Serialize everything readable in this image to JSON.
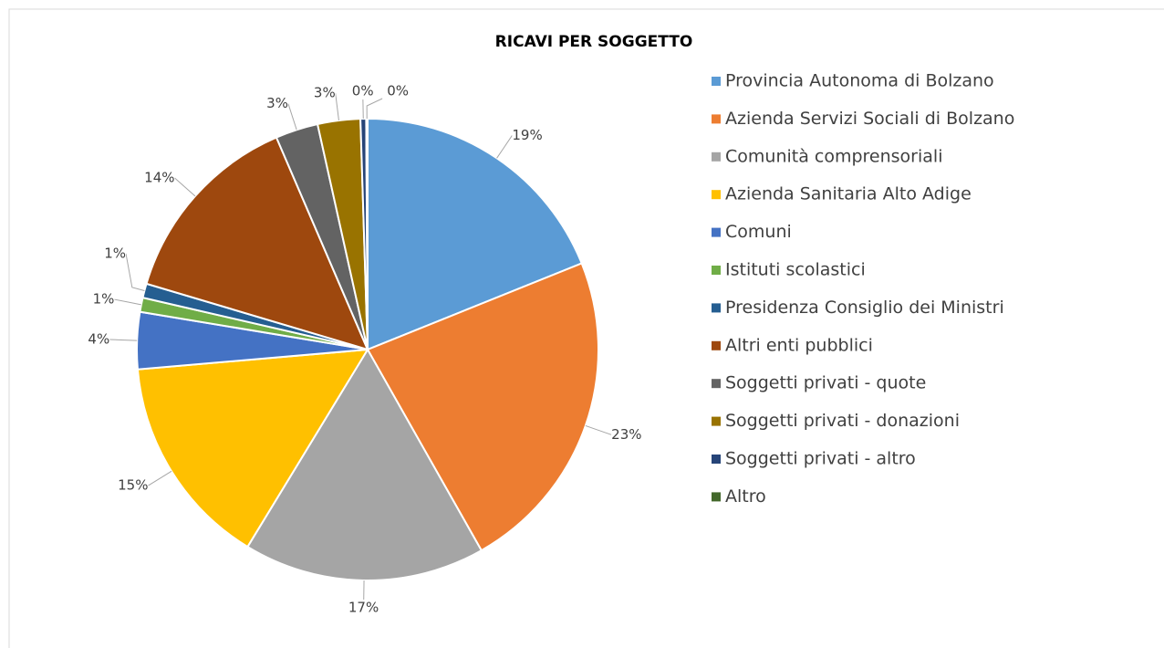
{
  "chart_data": {
    "type": "pie",
    "title": "RICAVI PER SOGGETTO",
    "categories": [
      "Provincia Autonoma di Bolzano",
      "Azienda Servizi Sociali di Bolzano",
      "Comunità comprensoriali",
      "Azienda Sanitaria Alto Adige",
      "Comuni",
      "Istituti scolastici",
      "Presidenza Consiglio dei Ministri",
      "Altri enti pubblici",
      "Soggetti privati - quote",
      "Soggetti privati - donazioni",
      "Soggetti privati - altro",
      "Altro"
    ],
    "values": [
      19,
      23,
      17,
      15,
      4,
      1,
      1,
      14,
      3,
      3,
      0.4,
      0.1
    ],
    "value_labels": [
      "19%",
      "23%",
      "17%",
      "15%",
      "4%",
      "1%",
      "1%",
      "14%",
      "3%",
      "3%",
      "0%",
      "0%"
    ],
    "colors": [
      "#5b9bd5",
      "#ed7d31",
      "#a5a5a5",
      "#ffc000",
      "#4472c4",
      "#70ad47",
      "#255e91",
      "#9e480e",
      "#636363",
      "#997300",
      "#264478",
      "#43682b"
    ],
    "legend": "right"
  }
}
